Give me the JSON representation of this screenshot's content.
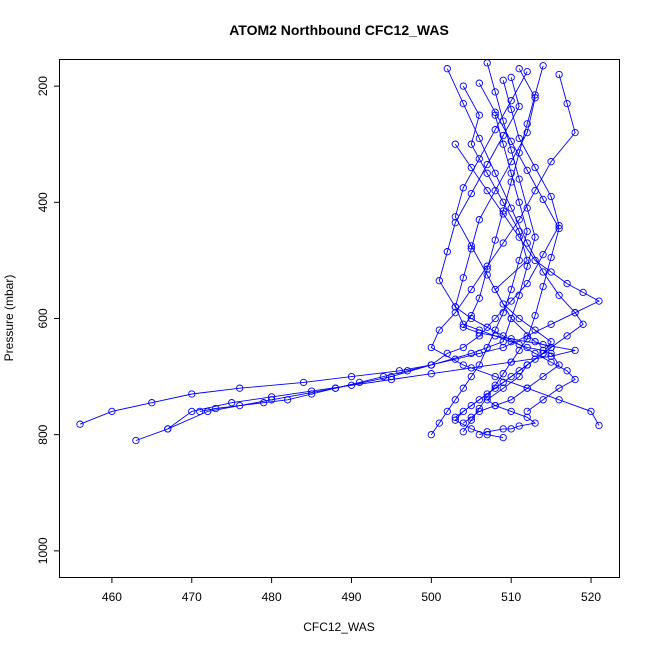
{
  "chart_data": {
    "type": "line",
    "title": "ATOM2 Northbound CFC12_WAS",
    "xlabel": "CFC12_WAS",
    "ylabel": "Pressure (mbar)",
    "xlim": [
      453.5,
      523.5
    ],
    "ylim": [
      1045,
      155
    ],
    "x_ticks": [
      460,
      470,
      480,
      490,
      500,
      510,
      520
    ],
    "y_ticks": [
      200,
      400,
      600,
      800,
      1000
    ],
    "y_reversed": true,
    "grid": false,
    "legend": "none",
    "series_color": "#0000ff",
    "marker": "open-circle",
    "series": [
      {
        "name": "",
        "x": [
          504,
          506,
          505,
          507,
          509,
          511,
          512,
          508,
          510,
          513,
          515,
          514,
          512,
          511,
          509,
          507,
          508,
          510,
          512,
          513,
          511,
          510,
          509,
          507,
          506
        ],
        "y": [
          200,
          250,
          300,
          350,
          400,
          450,
          500,
          550,
          600,
          640,
          650,
          660,
          680,
          700,
          720,
          740,
          750,
          760,
          770,
          780,
          785,
          790,
          790,
          795,
          800
        ]
      },
      {
        "name": "",
        "x": [
          511,
          513,
          512,
          510,
          508,
          506,
          505,
          504,
          503,
          504,
          506,
          508,
          510,
          512,
          514,
          515,
          516,
          514,
          512,
          510,
          508,
          506,
          505,
          504
        ],
        "y": [
          170,
          220,
          280,
          330,
          380,
          430,
          480,
          530,
          580,
          610,
          620,
          630,
          640,
          650,
          655,
          660,
          680,
          700,
          720,
          740,
          750,
          760,
          770,
          780
        ]
      },
      {
        "name": "",
        "x": [
          509,
          510,
          511,
          513,
          515,
          516,
          514,
          512,
          510,
          508,
          506,
          504,
          502,
          500,
          496,
          490,
          484,
          476,
          470,
          465,
          460,
          456
        ],
        "y": [
          190,
          240,
          290,
          340,
          390,
          440,
          490,
          540,
          570,
          600,
          630,
          650,
          660,
          680,
          690,
          700,
          710,
          720,
          730,
          745,
          760,
          782
        ]
      },
      {
        "name": "",
        "x": [
          516,
          517,
          518,
          515,
          513,
          511,
          509,
          507,
          505,
          503,
          501,
          500,
          504,
          508,
          512,
          516,
          520,
          521
        ],
        "y": [
          180,
          230,
          280,
          330,
          380,
          430,
          470,
          510,
          550,
          590,
          620,
          650,
          680,
          700,
          720,
          740,
          760,
          784
        ]
      },
      {
        "name": "",
        "x": [
          507,
          508,
          509,
          510,
          511,
          512,
          513,
          512,
          511,
          510,
          509,
          505,
          500,
          495,
          488,
          480,
          472,
          467,
          463
        ],
        "y": [
          160,
          210,
          260,
          310,
          360,
          410,
          460,
          510,
          560,
          600,
          640,
          660,
          680,
          700,
          720,
          740,
          760,
          790,
          810
        ]
      },
      {
        "name": "",
        "x": [
          502,
          504,
          506,
          508,
          510,
          512,
          514,
          516,
          518,
          519,
          517,
          515,
          513,
          511,
          509,
          507,
          505,
          503
        ],
        "y": [
          170,
          230,
          290,
          350,
          410,
          470,
          520,
          560,
          590,
          610,
          630,
          650,
          670,
          690,
          710,
          730,
          750,
          770
        ]
      },
      {
        "name": "",
        "x": [
          512,
          510,
          508,
          506,
          504,
          503,
          505,
          507,
          509,
          511,
          513,
          515,
          514,
          512,
          510,
          508,
          506,
          504,
          503,
          505,
          507,
          509
        ],
        "y": [
          175,
          225,
          275,
          325,
          375,
          425,
          475,
          525,
          575,
          600,
          620,
          640,
          660,
          680,
          700,
          720,
          740,
          760,
          775,
          790,
          800,
          805
        ]
      },
      {
        "name": "",
        "x": [
          503,
          505,
          507,
          509,
          511,
          513,
          515,
          517,
          519,
          521,
          518,
          515,
          512,
          509,
          506,
          503,
          500,
          497,
          494,
          491,
          488,
          485,
          482,
          479,
          476,
          473,
          471
        ],
        "y": [
          300,
          340,
          380,
          420,
          460,
          500,
          520,
          540,
          555,
          570,
          590,
          610,
          630,
          650,
          660,
          670,
          680,
          690,
          700,
          710,
          720,
          730,
          740,
          745,
          750,
          755,
          760
        ]
      },
      {
        "name": "",
        "x": [
          514,
          513,
          512,
          511,
          510,
          509,
          508,
          507,
          506,
          505,
          504,
          506,
          510,
          514,
          518,
          515,
          510,
          505,
          500,
          495,
          490,
          485,
          480,
          475,
          470,
          467
        ],
        "y": [
          165,
          215,
          265,
          315,
          365,
          415,
          465,
          515,
          565,
          595,
          615,
          625,
          635,
          645,
          655,
          665,
          675,
          685,
          695,
          705,
          715,
          725,
          735,
          745,
          760,
          790
        ]
      },
      {
        "name": "",
        "x": [
          508,
          509,
          510,
          511,
          512,
          511,
          510,
          509,
          508,
          507,
          506,
          505,
          504,
          503,
          502,
          501,
          500
        ],
        "y": [
          250,
          300,
          350,
          400,
          450,
          500,
          550,
          590,
          620,
          650,
          680,
          700,
          720,
          740,
          760,
          780,
          800
        ]
      },
      {
        "name": "",
        "x": [
          506,
          508,
          510,
          512,
          514,
          516,
          515,
          514,
          513,
          512,
          511,
          510,
          509,
          508,
          507,
          506,
          505,
          504
        ],
        "y": [
          195,
          245,
          295,
          345,
          395,
          445,
          495,
          545,
          595,
          635,
          655,
          675,
          695,
          715,
          735,
          755,
          775,
          795
        ]
      },
      {
        "name": "",
        "x": [
          510,
          511,
          509,
          507,
          505,
          503,
          502,
          501,
          503,
          505,
          507,
          509,
          511,
          513,
          515,
          517,
          518,
          516,
          514,
          512
        ],
        "y": [
          185,
          235,
          285,
          335,
          385,
          435,
          485,
          535,
          580,
          600,
          615,
          630,
          645,
          660,
          675,
          690,
          705,
          720,
          740,
          760
        ]
      }
    ]
  }
}
